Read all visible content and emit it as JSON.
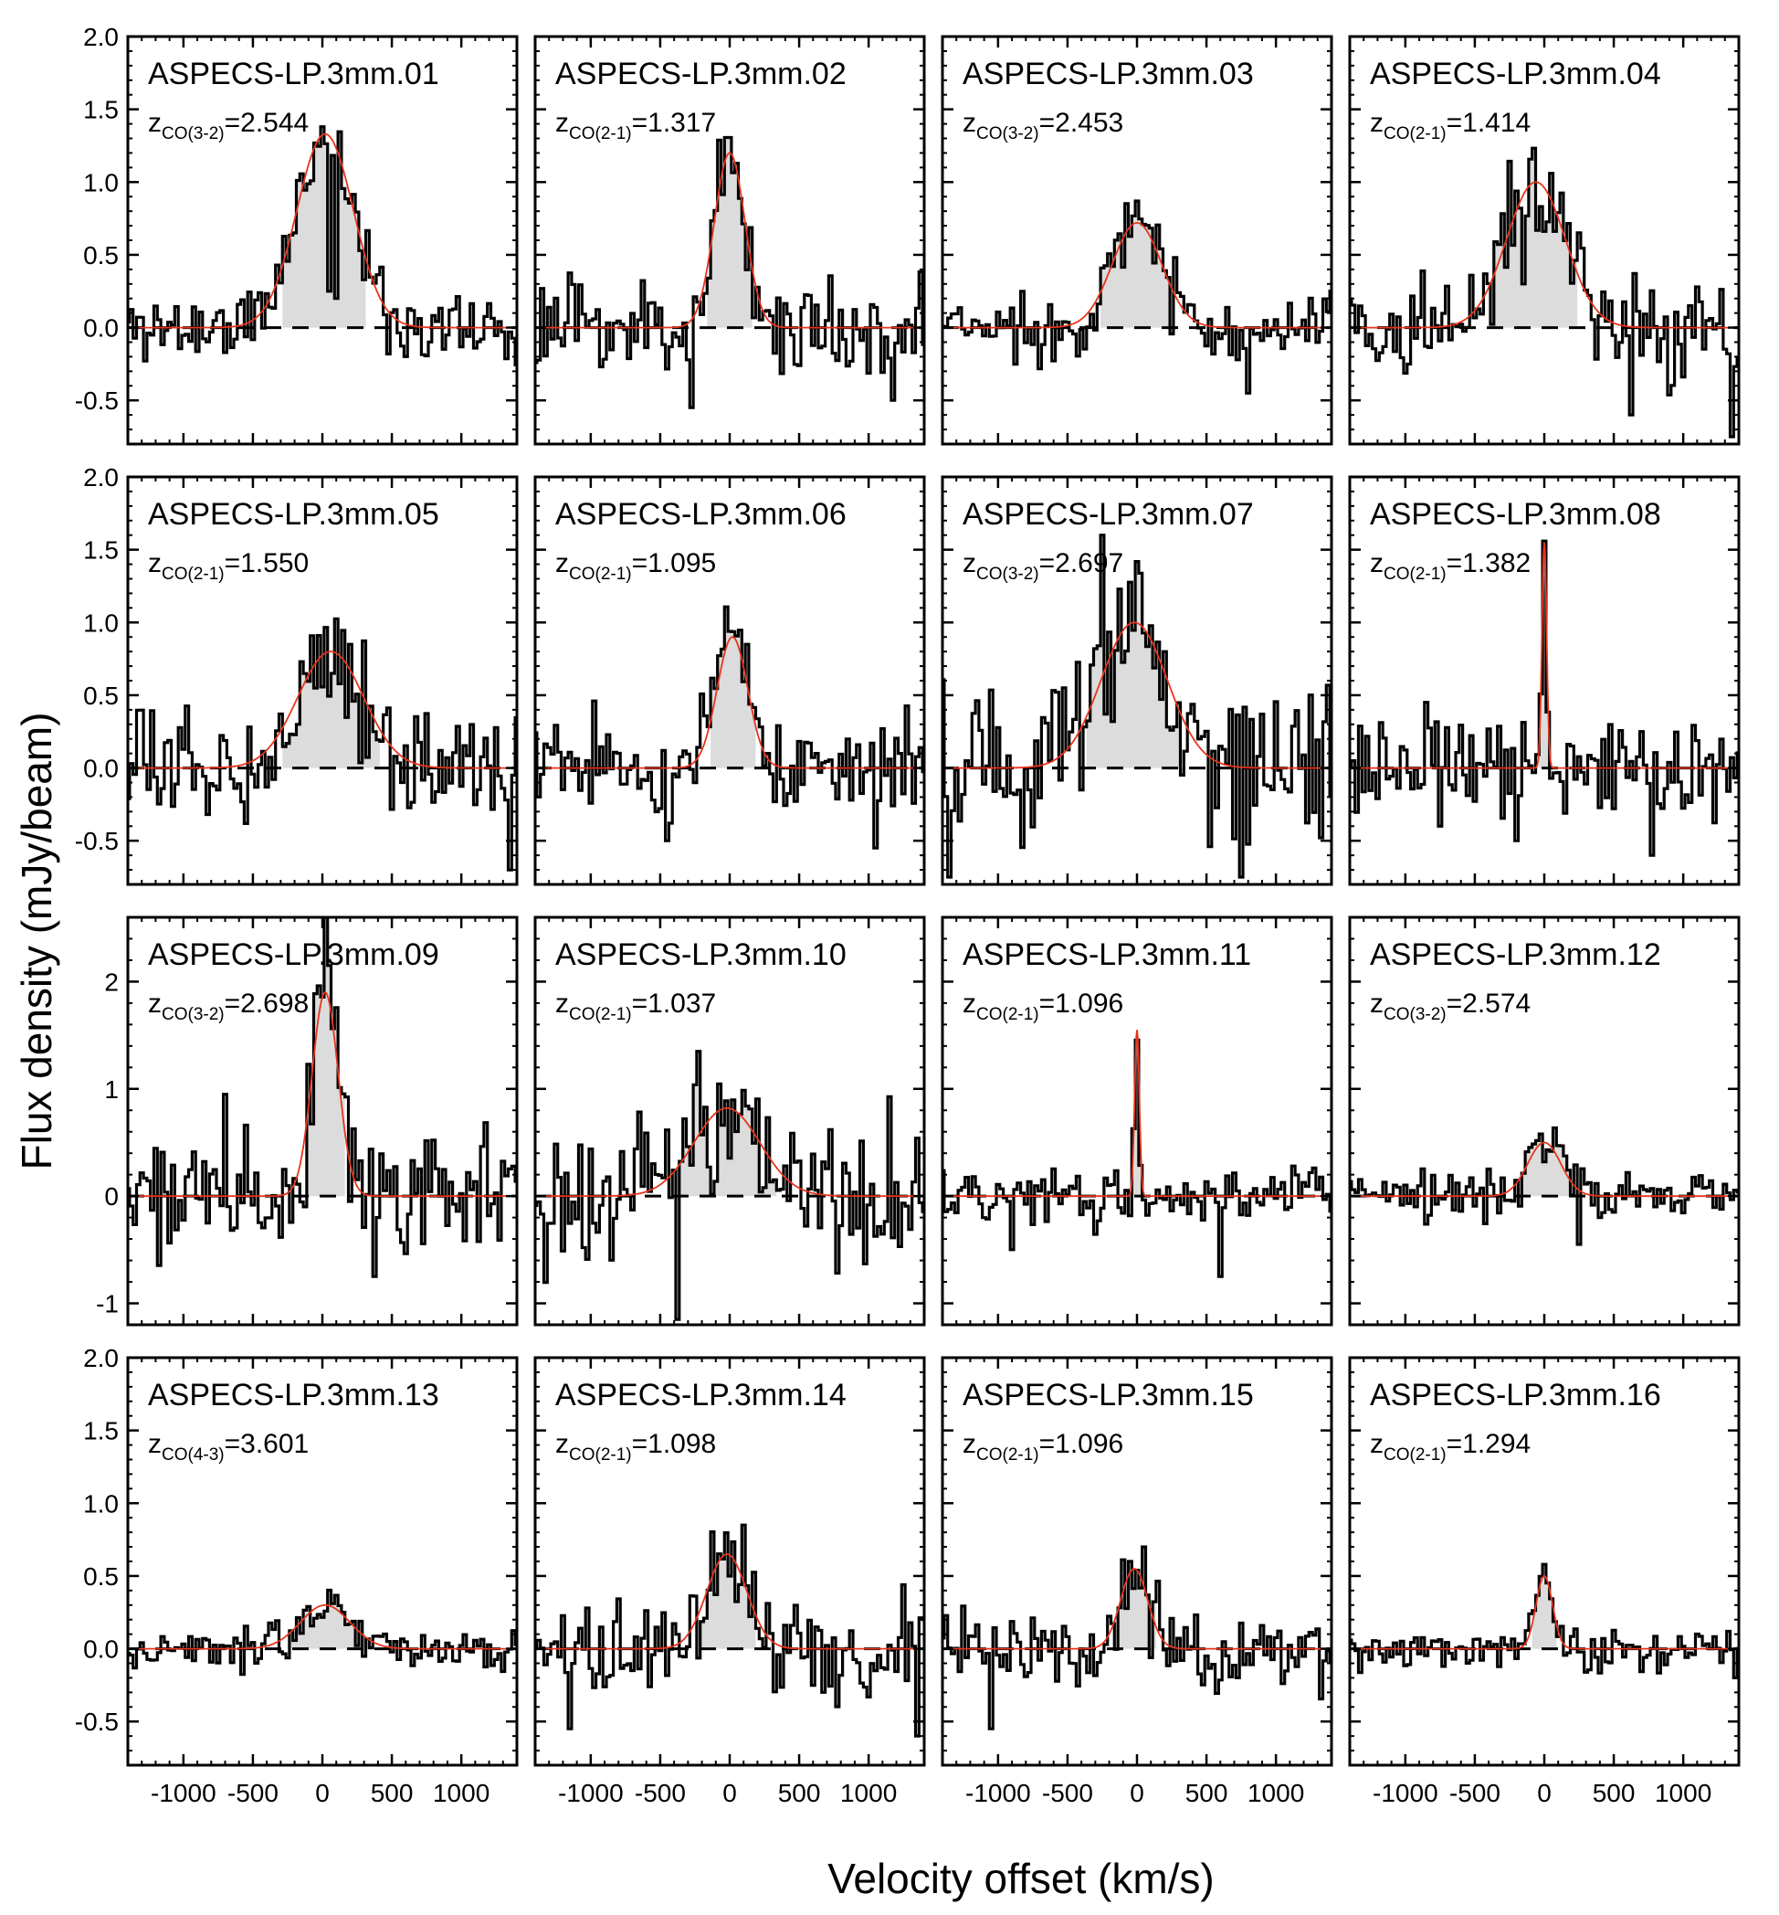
{
  "figure": {
    "xlabel": "Velocity offset (km/s)",
    "ylabel": "Flux density (mJy/beam)"
  },
  "chart_data": [
    {
      "type": "line",
      "title": "ASPECS-LP.3mm.01",
      "line": "CO(3-2)",
      "z": "2.544",
      "xlim": [
        -1400,
        1400
      ],
      "ylim": [
        -0.8,
        2.0
      ],
      "yticks": [
        "2.0",
        "1.5",
        "1.0",
        "0.5",
        "0.0",
        "-0.5"
      ],
      "ytick_values": [
        2.0,
        1.5,
        1.0,
        0.5,
        0.0,
        -0.5
      ],
      "xticks": [
        "-1000",
        "-500",
        "0",
        "500",
        "1000"
      ],
      "xtick_values": [
        -1000,
        -500,
        0,
        500,
        1000
      ],
      "gauss": {
        "amp": 1.33,
        "center": 20,
        "fwhm": 480
      },
      "noise": 0.13,
      "seed": 11,
      "extras": [
        [
          60,
          0.25
        ],
        [
          100,
          0.2
        ]
      ]
    },
    {
      "type": "line",
      "title": "ASPECS-LP.3mm.02",
      "line": "CO(2-1)",
      "z": "1.317",
      "xlim": [
        -1400,
        1400
      ],
      "ylim": [
        -0.8,
        2.0
      ],
      "yticks": [
        "2.0",
        "1.5",
        "1.0",
        "0.5",
        "0.0",
        "-0.5"
      ],
      "ytick_values": [
        2.0,
        1.5,
        1.0,
        0.5,
        0.0,
        -0.5
      ],
      "xticks": [
        "-1000",
        "-500",
        "0",
        "500",
        "1000"
      ],
      "xtick_values": [
        -1000,
        -500,
        0,
        500,
        1000
      ],
      "gauss": {
        "amp": 1.2,
        "center": 0,
        "fwhm": 260
      },
      "noise": 0.17,
      "seed": 23,
      "extras": [
        [
          -280,
          -0.55
        ],
        [
          1170,
          -0.5
        ]
      ]
    },
    {
      "type": "line",
      "title": "ASPECS-LP.3mm.03",
      "line": "CO(3-2)",
      "z": "2.453",
      "xlim": [
        -1400,
        1400
      ],
      "ylim": [
        -0.8,
        2.0
      ],
      "yticks": [
        "2.0",
        "1.5",
        "1.0",
        "0.5",
        "0.0",
        "-0.5"
      ],
      "ytick_values": [
        2.0,
        1.5,
        1.0,
        0.5,
        0.0,
        -0.5
      ],
      "xticks": [
        "-1000",
        "-500",
        "0",
        "500",
        "1000"
      ],
      "xtick_values": [
        -1000,
        -500,
        0,
        500,
        1000
      ],
      "gauss": {
        "amp": 0.72,
        "center": 0,
        "fwhm": 420
      },
      "noise": 0.12,
      "seed": 37,
      "extras": [
        [
          800,
          -0.45
        ]
      ]
    },
    {
      "type": "line",
      "title": "ASPECS-LP.3mm.04",
      "line": "CO(2-1)",
      "z": "1.414",
      "xlim": [
        -1400,
        1400
      ],
      "ylim": [
        -0.8,
        2.0
      ],
      "yticks": [
        "2.0",
        "1.5",
        "1.0",
        "0.5",
        "0.0",
        "-0.5"
      ],
      "ytick_values": [
        2.0,
        1.5,
        1.0,
        0.5,
        0.0,
        -0.5
      ],
      "xticks": [
        "-1000",
        "-500",
        "0",
        "500",
        "1000"
      ],
      "xtick_values": [
        -1000,
        -500,
        0,
        500,
        1000
      ],
      "gauss": {
        "amp": 1.0,
        "center": -60,
        "fwhm": 500
      },
      "noise": 0.2,
      "seed": 41,
      "extras": [
        [
          1360,
          -0.75
        ],
        [
          620,
          -0.6
        ],
        [
          -140,
          0.3
        ]
      ]
    },
    {
      "type": "line",
      "title": "ASPECS-LP.3mm.05",
      "line": "CO(2-1)",
      "z": "1.550",
      "xlim": [
        -1400,
        1400
      ],
      "ylim": [
        -0.8,
        2.0
      ],
      "yticks": [
        "2.0",
        "1.5",
        "1.0",
        "0.5",
        "0.0",
        "-0.5"
      ],
      "ytick_values": [
        2.0,
        1.5,
        1.0,
        0.5,
        0.0,
        -0.5
      ],
      "xticks": [
        "-1000",
        "-500",
        "0",
        "500",
        "1000"
      ],
      "xtick_values": [
        -1000,
        -500,
        0,
        500,
        1000
      ],
      "gauss": {
        "amp": 0.8,
        "center": 60,
        "fwhm": 560
      },
      "noise": 0.19,
      "seed": 53,
      "extras": [
        [
          1340,
          -0.7
        ],
        [
          -170,
          0.3
        ],
        [
          380,
          0.25
        ]
      ]
    },
    {
      "type": "line",
      "title": "ASPECS-LP.3mm.06",
      "line": "CO(2-1)",
      "z": "1.095",
      "xlim": [
        -1400,
        1400
      ],
      "ylim": [
        -0.8,
        2.0
      ],
      "yticks": [
        "2.0",
        "1.5",
        "1.0",
        "0.5",
        "0.0",
        "-0.5"
      ],
      "ytick_values": [
        2.0,
        1.5,
        1.0,
        0.5,
        0.0,
        -0.5
      ],
      "xticks": [
        "-1000",
        "-500",
        "0",
        "500",
        "1000"
      ],
      "xtick_values": [
        -1000,
        -500,
        0,
        500,
        1000
      ],
      "gauss": {
        "amp": 0.9,
        "center": 20,
        "fwhm": 260
      },
      "noise": 0.19,
      "seed": 61,
      "extras": [
        [
          -440,
          -0.5
        ],
        [
          1040,
          -0.55
        ]
      ]
    },
    {
      "type": "line",
      "title": "ASPECS-LP.3mm.07",
      "line": "CO(3-2)",
      "z": "2.697",
      "xlim": [
        -1400,
        1400
      ],
      "ylim": [
        -0.8,
        2.0
      ],
      "yticks": [
        "2.0",
        "1.5",
        "1.0",
        "0.5",
        "0.0",
        "-0.5"
      ],
      "ytick_values": [
        2.0,
        1.5,
        1.0,
        0.5,
        0.0,
        -0.5
      ],
      "xticks": [
        "-1000",
        "-500",
        "0",
        "500",
        "1000"
      ],
      "xtick_values": [
        -1000,
        -500,
        0,
        500,
        1000
      ],
      "gauss": {
        "amp": 1.0,
        "center": -20,
        "fwhm": 560
      },
      "noise": 0.27,
      "seed": 73,
      "extras": [
        [
          -260,
          1.6
        ],
        [
          740,
          -0.75
        ],
        [
          -1340,
          -0.75
        ]
      ]
    },
    {
      "type": "line",
      "title": "ASPECS-LP.3mm.08",
      "line": "CO(2-1)",
      "z": "1.382",
      "xlim": [
        -1400,
        1400
      ],
      "ylim": [
        -0.8,
        2.0
      ],
      "yticks": [
        "2.0",
        "1.5",
        "1.0",
        "0.5",
        "0.0",
        "-0.5"
      ],
      "ytick_values": [
        2.0,
        1.5,
        1.0,
        0.5,
        0.0,
        -0.5
      ],
      "xticks": [
        "-1000",
        "-500",
        "0",
        "500",
        "1000"
      ],
      "xtick_values": [
        -1000,
        -500,
        0,
        500,
        1000
      ],
      "gauss": {
        "amp": 1.55,
        "center": 0,
        "fwhm": 40
      },
      "noise": 0.19,
      "seed": 83,
      "extras": [
        [
          -210,
          -0.5
        ],
        [
          780,
          -0.6
        ]
      ]
    },
    {
      "type": "line",
      "title": "ASPECS-LP.3mm.09",
      "line": "CO(3-2)",
      "z": "2.698",
      "xlim": [
        -1400,
        1400
      ],
      "ylim": [
        -1.2,
        2.6
      ],
      "yticks": [
        "2",
        "1",
        "0",
        "-1"
      ],
      "ytick_values": [
        2,
        1,
        0,
        -1
      ],
      "xticks": [
        "-1000",
        "-500",
        "0",
        "500",
        "1000"
      ],
      "xtick_values": [
        -1000,
        -500,
        0,
        500,
        1000
      ],
      "gauss": {
        "amp": 1.9,
        "center": 20,
        "fwhm": 220
      },
      "noise": 0.3,
      "seed": 97,
      "extras": [
        [
          50,
          2.15
        ],
        [
          -700,
          0.95
        ],
        [
          380,
          -0.75
        ]
      ]
    },
    {
      "type": "line",
      "title": "ASPECS-LP.3mm.10",
      "line": "CO(2-1)",
      "z": "1.037",
      "xlim": [
        -1400,
        1400
      ],
      "ylim": [
        -1.2,
        2.6
      ],
      "yticks": [
        "2",
        "1",
        "0",
        "-1"
      ],
      "ytick_values": [
        2,
        1,
        0,
        -1
      ],
      "xticks": [
        "-1000",
        "-500",
        "0",
        "500",
        "1000"
      ],
      "xtick_values": [
        -1000,
        -500,
        0,
        500,
        1000
      ],
      "gauss": {
        "amp": 0.82,
        "center": -20,
        "fwhm": 560
      },
      "noise": 0.33,
      "seed": 103,
      "extras": [
        [
          -380,
          -1.15
        ],
        [
          -230,
          1.35
        ]
      ]
    },
    {
      "type": "line",
      "title": "ASPECS-LP.3mm.11",
      "line": "CO(2-1)",
      "z": "1.096",
      "xlim": [
        -1400,
        1400
      ],
      "ylim": [
        -1.2,
        2.6
      ],
      "yticks": [
        "2",
        "1",
        "0",
        "-1"
      ],
      "ytick_values": [
        2,
        1,
        0,
        -1
      ],
      "xticks": [
        "-1000",
        "-500",
        "0",
        "500",
        "1000"
      ],
      "xtick_values": [
        -1000,
        -500,
        0,
        500,
        1000
      ],
      "gauss": {
        "amp": 1.55,
        "center": 0,
        "fwhm": 40
      },
      "noise": 0.14,
      "seed": 109,
      "extras": [
        [
          600,
          -0.75
        ],
        [
          -900,
          -0.5
        ]
      ]
    },
    {
      "type": "line",
      "title": "ASPECS-LP.3mm.12",
      "line": "CO(3-2)",
      "z": "2.574",
      "xlim": [
        -1400,
        1400
      ],
      "ylim": [
        -1.2,
        2.6
      ],
      "yticks": [
        "2",
        "1",
        "0",
        "-1"
      ],
      "ytick_values": [
        2,
        1,
        0,
        -1
      ],
      "xticks": [
        "-1000",
        "-500",
        "0",
        "500",
        "1000"
      ],
      "xtick_values": [
        -1000,
        -500,
        0,
        500,
        1000
      ],
      "gauss": {
        "amp": 0.5,
        "center": 0,
        "fwhm": 280
      },
      "noise": 0.11,
      "seed": 127,
      "extras": [
        [
          240,
          -0.45
        ]
      ]
    },
    {
      "type": "line",
      "title": "ASPECS-LP.3mm.13",
      "line": "CO(4-3)",
      "z": "3.601",
      "xlim": [
        -1400,
        1400
      ],
      "ylim": [
        -0.8,
        2.0
      ],
      "yticks": [
        "2.0",
        "1.5",
        "1.0",
        "0.5",
        "0.0",
        "-0.5"
      ],
      "ytick_values": [
        2.0,
        1.5,
        1.0,
        0.5,
        0.0,
        -0.5
      ],
      "xticks": [
        "-1000",
        "-500",
        "0",
        "500",
        "1000"
      ],
      "xtick_values": [
        -1000,
        -500,
        0,
        500,
        1000
      ],
      "gauss": {
        "amp": 0.3,
        "center": 20,
        "fwhm": 420
      },
      "noise": 0.07,
      "seed": 131,
      "extras": []
    },
    {
      "type": "line",
      "title": "ASPECS-LP.3mm.14",
      "line": "CO(2-1)",
      "z": "1.098",
      "xlim": [
        -1400,
        1400
      ],
      "ylim": [
        -0.8,
        2.0
      ],
      "yticks": [
        "2.0",
        "1.5",
        "1.0",
        "0.5",
        "0.0",
        "-0.5"
      ],
      "ytick_values": [
        2.0,
        1.5,
        1.0,
        0.5,
        0.0,
        -0.5
      ],
      "xticks": [
        "-1000",
        "-500",
        "0",
        "500",
        "1000"
      ],
      "xtick_values": [
        -1000,
        -500,
        0,
        500,
        1000
      ],
      "gauss": {
        "amp": 0.65,
        "center": -20,
        "fwhm": 340
      },
      "noise": 0.17,
      "seed": 139,
      "extras": [
        [
          -1140,
          -0.55
        ],
        [
          110,
          0.85
        ],
        [
          1360,
          -0.6
        ]
      ]
    },
    {
      "type": "line",
      "title": "ASPECS-LP.3mm.15",
      "line": "CO(2-1)",
      "z": "1.096",
      "xlim": [
        -1400,
        1400
      ],
      "ylim": [
        -0.8,
        2.0
      ],
      "yticks": [
        "2.0",
        "1.5",
        "1.0",
        "0.5",
        "0.0",
        "-0.5"
      ],
      "ytick_values": [
        2.0,
        1.5,
        1.0,
        0.5,
        0.0,
        -0.5
      ],
      "xticks": [
        "-1000",
        "-500",
        "0",
        "500",
        "1000"
      ],
      "xtick_values": [
        -1000,
        -500,
        0,
        500,
        1000
      ],
      "gauss": {
        "amp": 0.55,
        "center": -20,
        "fwhm": 230
      },
      "noise": 0.14,
      "seed": 149,
      "extras": [
        [
          40,
          0.7
        ],
        [
          -1040,
          -0.55
        ]
      ]
    },
    {
      "type": "line",
      "title": "ASPECS-LP.3mm.16",
      "line": "CO(2-1)",
      "z": "1.294",
      "xlim": [
        -1400,
        1400
      ],
      "ylim": [
        -0.8,
        2.0
      ],
      "yticks": [
        "2.0",
        "1.5",
        "1.0",
        "0.5",
        "0.0",
        "-0.5"
      ],
      "ytick_values": [
        2.0,
        1.5,
        1.0,
        0.5,
        0.0,
        -0.5
      ],
      "xticks": [
        "-1000",
        "-500",
        "0",
        "500",
        "1000"
      ],
      "xtick_values": [
        -1000,
        -500,
        0,
        500,
        1000
      ],
      "gauss": {
        "amp": 0.5,
        "center": 0,
        "fwhm": 140
      },
      "noise": 0.07,
      "seed": 157,
      "extras": [
        [
          1370,
          -0.2
        ]
      ]
    }
  ]
}
